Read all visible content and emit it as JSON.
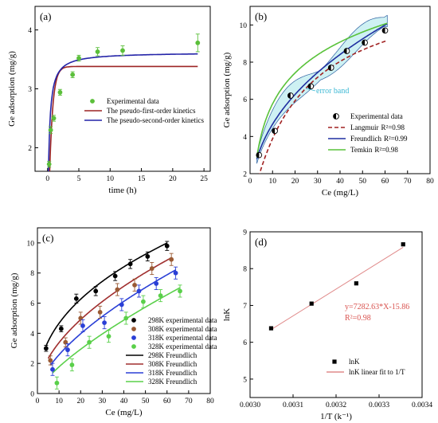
{
  "chart_data": [
    {
      "id": "a",
      "type": "scatter",
      "panel_label": "(a)",
      "xlabel": "time (h)",
      "ylabel": "Ge adsorption (mg/g)",
      "xlim": [
        -2,
        26
      ],
      "ylim": [
        1.6,
        4.4
      ],
      "xticks": [
        0,
        5,
        10,
        15,
        20,
        25
      ],
      "yticks": [
        2,
        3,
        4
      ],
      "legend_position": "center-right",
      "series": [
        {
          "name": "Experimental data",
          "kind": "points",
          "color": "#5bbf3a",
          "x": [
            0.25,
            0.5,
            1,
            2,
            4,
            5,
            8,
            12,
            24
          ],
          "y": [
            1.72,
            2.3,
            2.5,
            2.94,
            3.24,
            3.52,
            3.63,
            3.65,
            3.78
          ],
          "err": [
            0.05,
            0.06,
            0.05,
            0.05,
            0.05,
            0.05,
            0.07,
            0.08,
            0.15
          ]
        },
        {
          "name": "The pseudo-first-order kinetics",
          "kind": "curve",
          "color": "#9c2424",
          "model": "pfo",
          "qe": 3.38,
          "k": 1.9
        },
        {
          "name": "The pseudo-second-order kinetics",
          "kind": "curve",
          "color": "#2424a8",
          "model": "pso",
          "qe": 3.62,
          "k": 1.5
        }
      ]
    },
    {
      "id": "b",
      "type": "scatter",
      "panel_label": "(b)",
      "xlabel": "Ce (mg/L)",
      "ylabel": "Ge adsorption (mg/g)",
      "xlim": [
        0,
        80
      ],
      "ylim": [
        2,
        11
      ],
      "xticks": [
        0,
        10,
        20,
        30,
        40,
        50,
        60,
        70,
        80
      ],
      "yticks": [
        2,
        4,
        6,
        8,
        10
      ],
      "legend_position": "bottom-right",
      "annotation": "error band",
      "series": [
        {
          "name": "Experimental data",
          "kind": "points",
          "color": "#000000",
          "x": [
            4,
            11,
            18,
            27,
            36,
            43,
            51,
            60
          ],
          "y": [
            3.0,
            4.3,
            6.2,
            6.7,
            7.7,
            8.6,
            9.05,
            9.7
          ]
        },
        {
          "name": "Langmuir",
          "r2": "R²=0.98",
          "kind": "curve",
          "color": "#a02020",
          "dash": "5,3",
          "model": "langmuir",
          "qm": 12.5,
          "kl": 0.045
        },
        {
          "name": "Freundlich",
          "r2": "R²=0.99",
          "kind": "curve",
          "color": "#1f2ea0",
          "model": "freundlich",
          "kf": 1.75,
          "n": 2.35
        },
        {
          "name": "Temkin",
          "r2": "R²=0.98",
          "kind": "curve",
          "color": "#59c23a",
          "model": "temkin",
          "a": 1.1,
          "b": 2.4
        }
      ]
    },
    {
      "id": "c",
      "type": "scatter",
      "panel_label": "(c)",
      "xlabel": "Ce (mg/L)",
      "ylabel": "Ge adsorption (mg/g)",
      "xlim": [
        0,
        80
      ],
      "ylim": [
        0,
        11
      ],
      "xticks": [
        0,
        10,
        20,
        30,
        40,
        50,
        60,
        70,
        80
      ],
      "yticks": [
        0,
        2,
        4,
        6,
        8,
        10
      ],
      "legend_position": "bottom-right",
      "series": [
        {
          "name": "298K experimental data",
          "kind": "points",
          "color": "#000000",
          "x": [
            4,
            11,
            18,
            27,
            36,
            43,
            51,
            60
          ],
          "y": [
            3.0,
            4.3,
            6.3,
            6.8,
            7.8,
            8.6,
            9.1,
            9.8
          ],
          "err": [
            0.2,
            0.2,
            0.3,
            0.3,
            0.3,
            0.3,
            0.3,
            0.3
          ]
        },
        {
          "name": "308K experimental data",
          "kind": "points",
          "color": "#9a5a34",
          "x": [
            6,
            13,
            20,
            29,
            37,
            45,
            53,
            62
          ],
          "y": [
            2.2,
            3.4,
            5.0,
            5.4,
            6.9,
            7.2,
            8.3,
            8.9
          ],
          "err": [
            0.3,
            0.3,
            0.4,
            0.4,
            0.4,
            0.4,
            0.4,
            0.4
          ]
        },
        {
          "name": "318K experimental data",
          "kind": "points",
          "color": "#2a3fd6",
          "x": [
            7,
            14,
            21,
            31,
            39,
            47,
            55,
            64
          ],
          "y": [
            1.6,
            2.9,
            4.5,
            4.7,
            5.9,
            6.8,
            7.3,
            8.0
          ],
          "err": [
            0.4,
            0.4,
            0.4,
            0.4,
            0.4,
            0.4,
            0.4,
            0.4
          ]
        },
        {
          "name": "328K experimental data",
          "kind": "points",
          "color": "#5ad04a",
          "x": [
            9,
            16,
            24,
            33,
            41,
            49,
            57,
            66
          ],
          "y": [
            0.7,
            1.9,
            3.4,
            3.8,
            5.0,
            6.1,
            6.5,
            6.8
          ],
          "err": [
            0.4,
            0.4,
            0.4,
            0.4,
            0.4,
            0.4,
            0.4,
            0.4
          ]
        },
        {
          "name": "298K Freundlich",
          "kind": "curve",
          "color": "#000000",
          "model": "freundlich",
          "kf": 1.75,
          "n": 2.35,
          "x0": 4,
          "x1": 60
        },
        {
          "name": "308K Freundlich",
          "kind": "curve",
          "color": "#a02e2e",
          "model": "freundlich",
          "kf": 0.98,
          "n": 1.86,
          "x0": 5,
          "x1": 62
        },
        {
          "name": "318K Freundlich",
          "kind": "curve",
          "color": "#2a3fd6",
          "model": "freundlich",
          "kf": 0.61,
          "n": 1.6,
          "x0": 6,
          "x1": 64
        },
        {
          "name": "328K Freundlich",
          "kind": "curve",
          "color": "#5ad04a",
          "model": "freundlich",
          "kf": 0.33,
          "n": 1.37,
          "x0": 7,
          "x1": 66
        }
      ]
    },
    {
      "id": "d",
      "type": "scatter",
      "panel_label": "(d)",
      "xlabel": "1/T (k⁻¹)",
      "ylabel": "lnK",
      "xlim": [
        0.003,
        0.0034
      ],
      "ylim": [
        4.5,
        9
      ],
      "xticks": [
        0.003,
        0.0031,
        0.0032,
        0.0033,
        0.0034
      ],
      "xticklabels": [
        "0.0030",
        "0.0031",
        "0.0032",
        "0.0033",
        "0.0034"
      ],
      "yticks": [
        5,
        6,
        7,
        8,
        9
      ],
      "legend_position": "bottom-right",
      "equation": "y=7282.63*X-15.86",
      "r2": "R²=0.98",
      "series": [
        {
          "name": "lnK",
          "kind": "points",
          "color": "#000000",
          "x": [
            0.003049,
            0.003143,
            0.003247,
            0.003356
          ],
          "y": [
            6.38,
            7.05,
            7.6,
            8.66
          ]
        },
        {
          "name": "lnK linear fit to 1/T",
          "kind": "line",
          "color": "#e08a8a",
          "slope": 7282.63,
          "intercept": -15.86,
          "x0": 0.003049,
          "x1": 0.003356
        }
      ]
    }
  ]
}
